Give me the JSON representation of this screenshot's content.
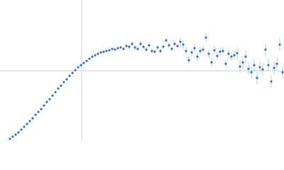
{
  "chart_data": {
    "type": "scatter",
    "xlim": [
      -115,
      285
    ],
    "ylim": [
      -100,
      100
    ],
    "color": "#3a6fc4",
    "error_color": "#a9c0e6",
    "axis_color": "#c8d0dc",
    "x": [
      -101,
      -97,
      -93,
      -89,
      -85,
      -81,
      -77,
      -73,
      -69,
      -65,
      -61,
      -57,
      -53,
      -49,
      -45,
      -41,
      -37,
      -33,
      -29,
      -25,
      -21,
      -17,
      -13,
      -9,
      -5,
      -1,
      3,
      7,
      11,
      15,
      19,
      23,
      27,
      31,
      35,
      39,
      43,
      47,
      51,
      55,
      59,
      63,
      67,
      71,
      75,
      79,
      83,
      87,
      91,
      95,
      99,
      103,
      107,
      111,
      115,
      119,
      123,
      127,
      131,
      135,
      139,
      143,
      147,
      151,
      155,
      159,
      163,
      167,
      171,
      175,
      179,
      183,
      187,
      191,
      195,
      199,
      203,
      207,
      211,
      215,
      219,
      223,
      227,
      231,
      235,
      239,
      243,
      247,
      251,
      255,
      259,
      263,
      267,
      271,
      275,
      279,
      283
    ],
    "values": [
      -96,
      -93,
      -90,
      -87,
      -83,
      -79,
      -75,
      -71,
      -67,
      -62,
      -58,
      -54,
      -49,
      -44,
      -40,
      -35,
      -30,
      -25,
      -21,
      -16,
      -12,
      -7,
      -3,
      1,
      5,
      8,
      11,
      14,
      17,
      20,
      22,
      24,
      26,
      27,
      28,
      29,
      31,
      30,
      32,
      33,
      31,
      35,
      34,
      38,
      33,
      31,
      38,
      34,
      30,
      36,
      28,
      27,
      33,
      28,
      34,
      43,
      36,
      31,
      38,
      35,
      41,
      37,
      28,
      15,
      26,
      32,
      20,
      28,
      30,
      47,
      24,
      12,
      29,
      21,
      27,
      28,
      10,
      24,
      20,
      22,
      25,
      6,
      12,
      20,
      3,
      -2,
      8,
      -10,
      5,
      2,
      30,
      8,
      -15,
      4,
      10,
      37,
      -2
    ],
    "errors": [
      1,
      1,
      1,
      1,
      1,
      1,
      1,
      1,
      1,
      1,
      1,
      1,
      1,
      1,
      1,
      1,
      1,
      1,
      1,
      1,
      1,
      1,
      1,
      1,
      1,
      1,
      1,
      1,
      1,
      1,
      1,
      1,
      1,
      1,
      1,
      1,
      1,
      1,
      1,
      1,
      3,
      3,
      3,
      3,
      3,
      3,
      3,
      3,
      3,
      3,
      3,
      3,
      3,
      3,
      3,
      3,
      3,
      3,
      3,
      3,
      6,
      6,
      6,
      6,
      6,
      6,
      6,
      6,
      6,
      6,
      6,
      6,
      6,
      6,
      6,
      6,
      6,
      6,
      6,
      6,
      9,
      9,
      9,
      9,
      9,
      9,
      9,
      9,
      9,
      9,
      9,
      9,
      9,
      9,
      9,
      9,
      9
    ]
  }
}
